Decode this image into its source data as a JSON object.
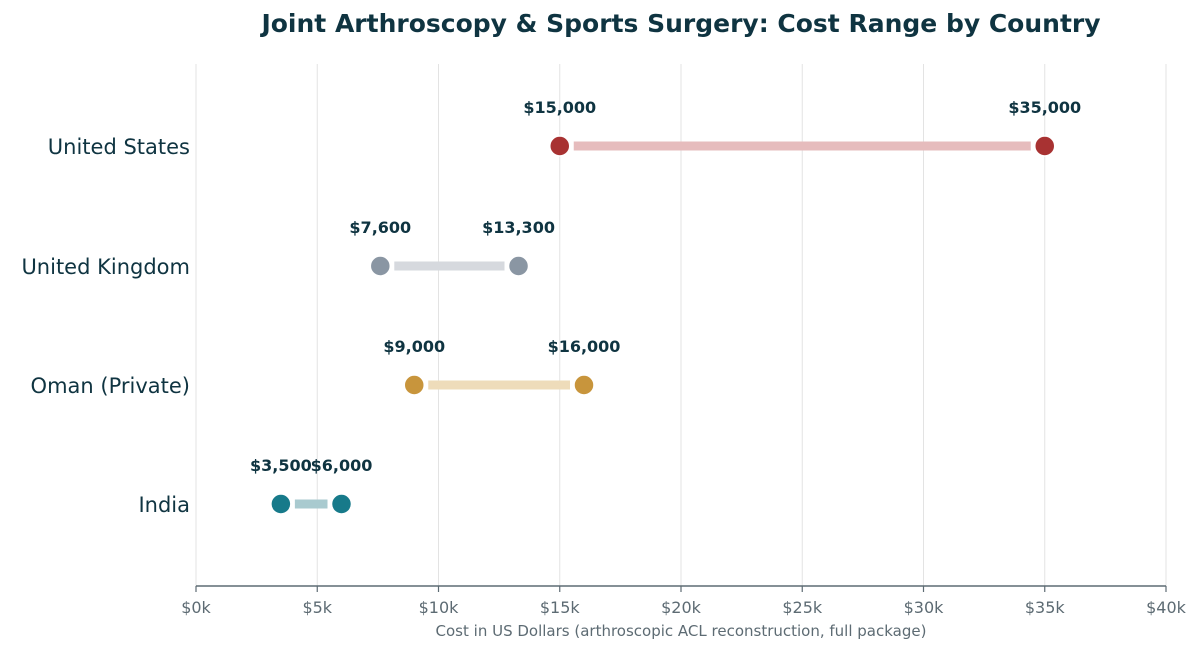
{
  "chart_data": {
    "type": "dumbbell",
    "title": "Joint Arthroscopy & Sports Surgery: Cost Range by Country",
    "xlabel": "Cost in US Dollars (arthroscopic ACL reconstruction, full package)",
    "ylabel": "",
    "xlim": [
      0,
      40000
    ],
    "x_ticks": [
      0,
      5000,
      10000,
      15000,
      20000,
      25000,
      30000,
      35000,
      40000
    ],
    "x_tick_labels": [
      "$0k",
      "$5k",
      "$10k",
      "$15k",
      "$20k",
      "$25k",
      "$30k",
      "$35k",
      "$40k"
    ],
    "grid": "vertical",
    "legend": "none",
    "rows": [
      {
        "category": "United States",
        "low": 15000,
        "high": 35000,
        "low_label": "$15,000",
        "high_label": "$35,000",
        "dot_color": "#a83232",
        "bar_color": "#e6bcbd"
      },
      {
        "category": "United Kingdom",
        "low": 7600,
        "high": 13300,
        "low_label": "$7,600",
        "high_label": "$13,300",
        "dot_color": "#8a96a3",
        "bar_color": "#d6d9de"
      },
      {
        "category": "Oman (Private)",
        "low": 9000,
        "high": 16000,
        "low_label": "$9,000",
        "high_label": "$16,000",
        "dot_color": "#c8953c",
        "bar_color": "#eedcba"
      },
      {
        "category": "India",
        "low": 3500,
        "high": 6000,
        "low_label": "$3,500",
        "high_label": "$6,000",
        "dot_color": "#177a8a",
        "bar_color": "#a9cacf"
      }
    ]
  }
}
